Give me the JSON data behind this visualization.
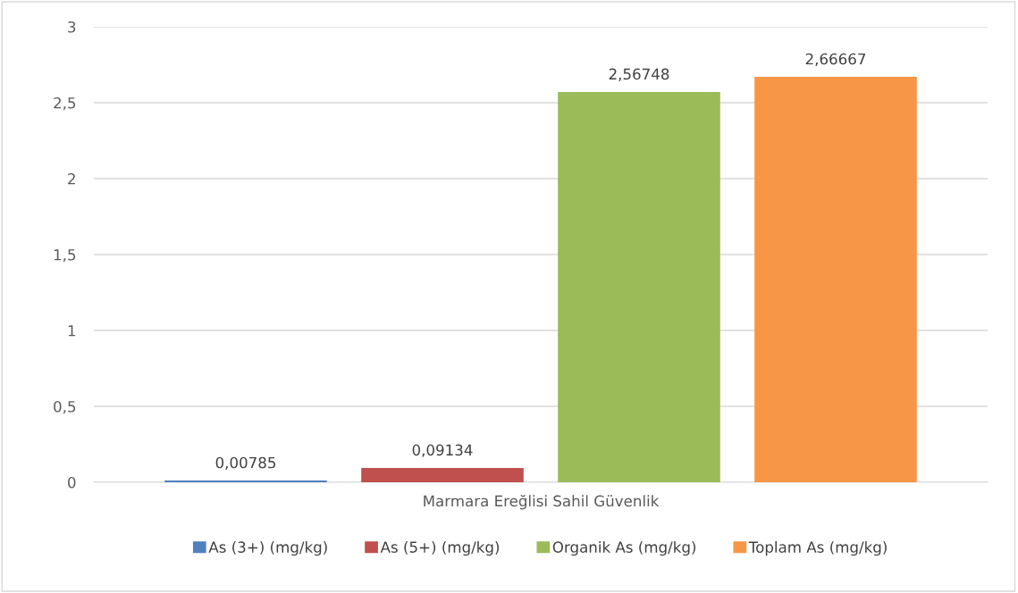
{
  "chart_data": {
    "type": "bar",
    "categories": [
      "Marmara Ereğlisi Sahil Güvenlik"
    ],
    "series": [
      {
        "name": "As (3+) (mg/kg)",
        "color": "#4f81bd",
        "values": [
          0.00785
        ],
        "value_labels": [
          "0,00785"
        ]
      },
      {
        "name": "As (5+) (mg/kg)",
        "color": "#c0504d",
        "values": [
          0.09134
        ],
        "value_labels": [
          "0,09134"
        ]
      },
      {
        "name": "Organik As (mg/kg)",
        "color": "#9bbb59",
        "values": [
          2.56748
        ],
        "value_labels": [
          "2,56748"
        ]
      },
      {
        "name": "Toplam As (mg/kg)",
        "color": "#f79646",
        "values": [
          2.66667
        ],
        "value_labels": [
          "2,66667"
        ]
      }
    ],
    "ylim": [
      0,
      3
    ],
    "yticks": [
      0,
      {
        "value": 0.5,
        "label": "0,5"
      },
      1,
      {
        "value": 1.5,
        "label": "1,5"
      },
      2,
      {
        "value": 2.5,
        "label": "2,5"
      },
      3
    ],
    "grid": "y",
    "legend": "bottom"
  }
}
